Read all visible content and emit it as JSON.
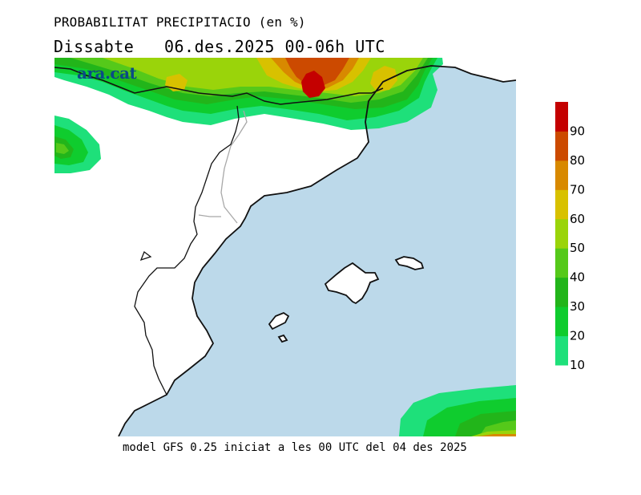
{
  "header": {
    "title": "PROBABILITAT PRECIPITACIO (en %)",
    "subtitle": "Dissabte   06.des.2025 00-06h UTC"
  },
  "brand": {
    "logo_text": "ara.cat"
  },
  "footer": {
    "model_info": "model GFS 0.25 iniciat a les 00 UTC del 04 des 2025"
  },
  "colors": {
    "sea": "#bcd9ea",
    "land": "#ffffff",
    "coast": "#111111",
    "border": "#a8a8a8"
  },
  "legend": {
    "ticks": [
      "10",
      "20",
      "30",
      "40",
      "50",
      "60",
      "70",
      "80",
      "90"
    ],
    "bins": [
      {
        "min": 10,
        "max": 20,
        "color": "#1ee07a"
      },
      {
        "min": 20,
        "max": 30,
        "color": "#0fcc2e"
      },
      {
        "min": 30,
        "max": 40,
        "color": "#22b51a"
      },
      {
        "min": 40,
        "max": 50,
        "color": "#55c91a"
      },
      {
        "min": 50,
        "max": 60,
        "color": "#9ad40a"
      },
      {
        "min": 60,
        "max": 70,
        "color": "#d8c100"
      },
      {
        "min": 70,
        "max": 80,
        "color": "#d88900"
      },
      {
        "min": 80,
        "max": 90,
        "color": "#cc4a00"
      },
      {
        "min": 90,
        "max": 100,
        "color": "#c40000"
      }
    ]
  }
}
